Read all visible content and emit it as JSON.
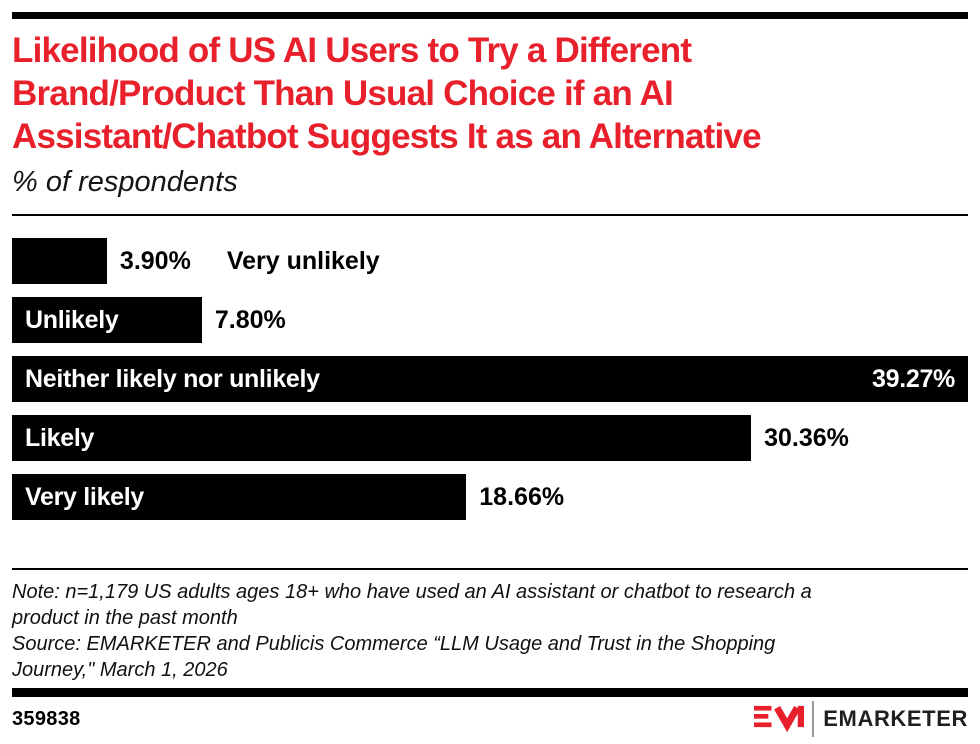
{
  "page": {
    "title_lines": [
      "Likelihood of US AI Users to Try a Different",
      "Brand/Product Than Usual Choice if an AI",
      "Assistant/Chatbot Suggests It as an Alternative"
    ],
    "subtitle": "% of respondents"
  },
  "chart_data": {
    "type": "bar",
    "orientation": "horizontal",
    "title": "Likelihood of US AI Users to Try a Different Brand/Product Than Usual Choice if an AI Assistant/Chatbot Suggests It as an Alternative",
    "xlabel": "% of respondents",
    "ylabel": "",
    "categories": [
      "Very unlikely",
      "Unlikely",
      "Neither likely nor unlikely",
      "Likely",
      "Very likely"
    ],
    "values": [
      3.9,
      7.8,
      39.27,
      30.36,
      18.66
    ],
    "value_labels": [
      "3.90%",
      "7.80%",
      "39.27%",
      "30.36%",
      "18.66%"
    ],
    "xlim": [
      0,
      39.27
    ],
    "bar_color": "#000000",
    "label_inside": [
      false,
      true,
      true,
      true,
      true
    ],
    "value_inside": [
      false,
      false,
      true,
      false,
      false
    ],
    "grid": false,
    "legend": "none"
  },
  "footnote": {
    "lines": [
      "Note: n=1,179 US adults ages 18+ who have used an AI assistant or chatbot to research a",
      "product in the past month",
      "Source: EMARKETER and Publicis Commerce “LLM Usage and Trust in the Shopping",
      "Journey,\" March 1, 2026"
    ]
  },
  "footer": {
    "chart_id": "359838",
    "brand": "EMARKETER",
    "logo_icon": "emarketer-em-logo"
  },
  "colors": {
    "accent_red": "#E8202B",
    "bar_black": "#000000",
    "wordmark": "#231F20"
  }
}
